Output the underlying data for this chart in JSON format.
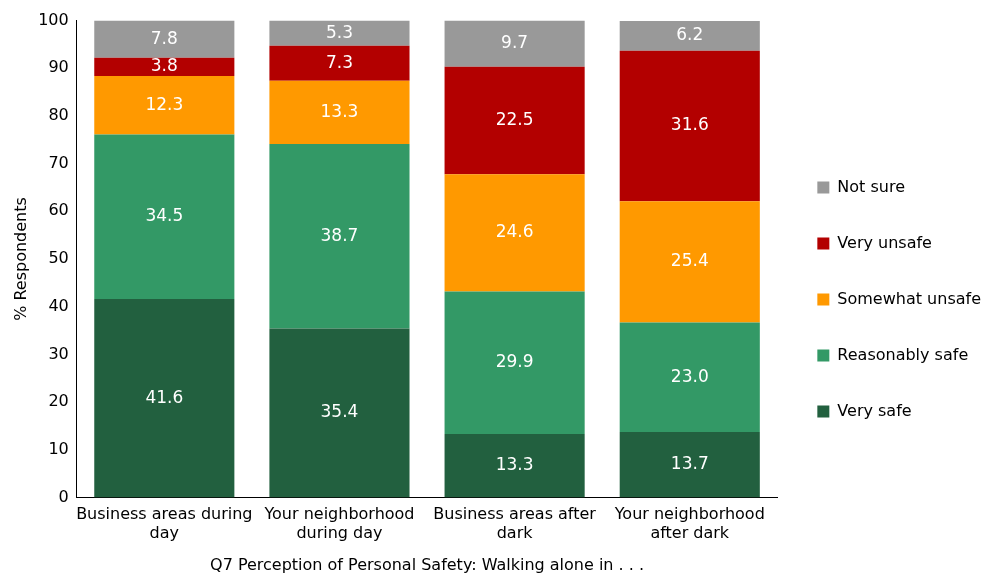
{
  "chart_data": {
    "type": "bar",
    "stacked": true,
    "xlabel": "Q7 Perception of Personal Safety: Walking alone in . . .",
    "ylabel": "% Respondents",
    "categories": [
      "Business areas during day",
      "Your neighborhood during day",
      "Business areas after dark",
      "Your neighborhood after dark"
    ],
    "series": [
      {
        "name": "Very safe",
        "color": "#22603f",
        "values": [
          41.6,
          35.4,
          13.3,
          13.7
        ],
        "value_labels": [
          "41.6",
          "35.4",
          "13.3",
          "13.7"
        ]
      },
      {
        "name": "Reasonably safe",
        "color": "#339966",
        "values": [
          34.5,
          38.7,
          29.9,
          23.0
        ],
        "value_labels": [
          "34.5",
          "38.7",
          "29.9",
          "23.0"
        ]
      },
      {
        "name": "Somewhat unsafe",
        "color": "#ff9900",
        "values": [
          12.3,
          13.3,
          24.6,
          25.4
        ],
        "value_labels": [
          "12.3",
          "13.3",
          "24.6",
          "25.4"
        ]
      },
      {
        "name": "Very unsafe",
        "color": "#b30000",
        "values": [
          3.8,
          7.3,
          22.5,
          31.6
        ],
        "value_labels": [
          "3.8",
          "7.3",
          "22.5",
          "31.6"
        ]
      },
      {
        "name": "Not sure",
        "color": "#999999",
        "values": [
          7.8,
          5.3,
          9.7,
          6.2
        ],
        "value_labels": [
          "7.8",
          "5.3",
          "9.7",
          "6.2"
        ]
      }
    ],
    "ylim": [
      0,
      100
    ],
    "yticks": [
      0,
      10,
      20,
      30,
      40,
      50,
      60,
      70,
      80,
      90,
      100
    ],
    "grid": false,
    "legend": "right"
  }
}
